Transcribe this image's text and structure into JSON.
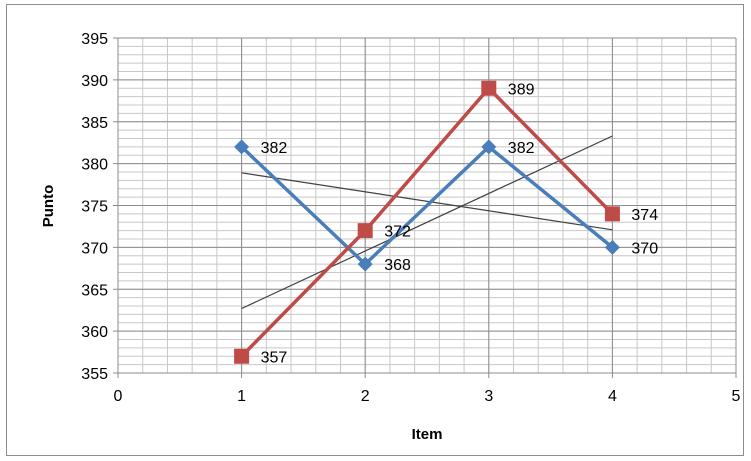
{
  "chart_data": {
    "type": "scatter",
    "title": "",
    "xlabel": "Item",
    "ylabel": "Punto",
    "xlim": [
      0,
      5
    ],
    "ylim": [
      355,
      395
    ],
    "x_major_step": 1,
    "x_minor_step": 0.2,
    "y_major_step": 5,
    "y_minor_step": 1,
    "grid": true,
    "legend": "none",
    "series": [
      {
        "color": "#4a7ebb",
        "marker": "diamond",
        "x": [
          1,
          2,
          3,
          4
        ],
        "y": [
          382,
          368,
          382,
          370
        ],
        "labels": [
          "382",
          "368",
          "382",
          "370"
        ]
      },
      {
        "color": "#be4b48",
        "marker": "square",
        "x": [
          1,
          2,
          3,
          4
        ],
        "y": [
          357,
          372,
          389,
          374
        ],
        "labels": [
          "357",
          "372",
          "389",
          "374"
        ]
      }
    ],
    "trendlines": [
      {
        "color": "#404040",
        "x": [
          1,
          4
        ],
        "y": [
          378.9,
          372.1
        ]
      },
      {
        "color": "#404040",
        "x": [
          1,
          4
        ],
        "y": [
          362.7,
          383.3
        ]
      }
    ]
  }
}
